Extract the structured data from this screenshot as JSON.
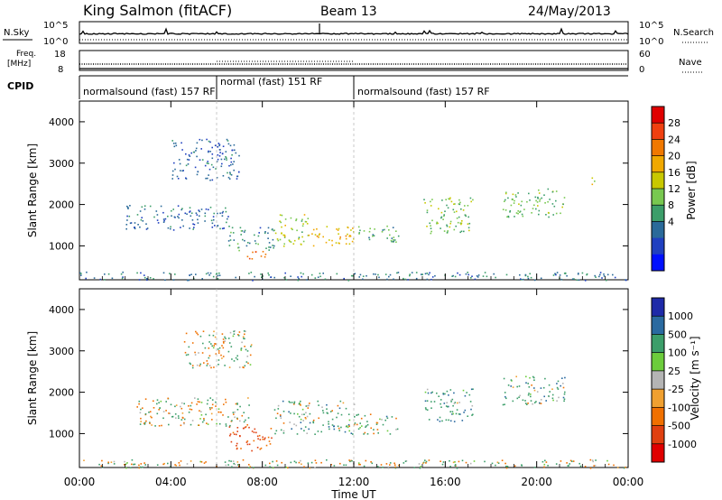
{
  "header": {
    "station": "King Salmon (fitACF)",
    "beam": "Beam 13",
    "date": "24/May/2013"
  },
  "params_panel": {
    "nsky_label": "N.Sky",
    "nsky_ticks": [
      "10^5",
      "10^0"
    ],
    "nsearch_label": "N.Search",
    "nsearch_ticks": [
      "10^5",
      "10^0"
    ],
    "freq_label_line1": "Freq.",
    "freq_label_line2": "[MHz]",
    "freq_ticks": [
      "18",
      "8"
    ],
    "nave_label": "Nave",
    "nave_ticks": [
      "60",
      "0"
    ],
    "cpid_label": "CPID"
  },
  "cpid_segments": [
    {
      "label": "normalsound (fast) 157 RF",
      "start_hour": 0,
      "end_hour": 6.0
    },
    {
      "label": "normal (fast) 151 RF",
      "start_hour": 6.0,
      "end_hour": 12.0
    },
    {
      "label": "normalsound (fast) 157 RF",
      "start_hour": 12.0,
      "end_hour": 24.0
    }
  ],
  "power_colorbar": {
    "label": "Power [dB]",
    "ticks": [
      "28",
      "24",
      "20",
      "16",
      "12",
      "8",
      "4"
    ],
    "colors": [
      "#e00000",
      "#f04010",
      "#f07800",
      "#f0a800",
      "#c8c800",
      "#78c850",
      "#3c9e6a",
      "#2a6a9a",
      "#2040c0",
      "#0010ff"
    ]
  },
  "velocity_colorbar": {
    "label": "Velocity [m s⁻¹]",
    "ticks": [
      "1000",
      "500",
      "100",
      "25",
      "-25",
      "-100",
      "-500",
      "-1000"
    ],
    "colors": [
      "#1e2aa8",
      "#2a6aa0",
      "#3c9e6a",
      "#6ccc3c",
      "#b4b4b4",
      "#f0a030",
      "#f07000",
      "#e04010",
      "#e00000"
    ]
  },
  "chart_data": {
    "type": "heatmap",
    "xlabel": "Time UT",
    "x_ticks": [
      "00:00",
      "04:00",
      "08:00",
      "12:00",
      "16:00",
      "20:00",
      "00:00"
    ],
    "xlim_hours": [
      0,
      24
    ],
    "ylabel": "Slant Range [km]",
    "y_ticks": [
      1000,
      2000,
      3000,
      4000
    ],
    "ylim": [
      180,
      4500
    ],
    "panels": [
      {
        "name": "power",
        "units": "dB",
        "regions": [
          {
            "t0": 0.0,
            "t1": 24.0,
            "r0": 180,
            "r1": 380,
            "value": 8
          },
          {
            "t0": 2.0,
            "t1": 6.5,
            "r0": 1400,
            "r1": 2000,
            "value": 7
          },
          {
            "t0": 4.0,
            "t1": 7.0,
            "r0": 2600,
            "r1": 3600,
            "value": 6
          },
          {
            "t0": 6.5,
            "t1": 8.5,
            "r0": 900,
            "r1": 1500,
            "value": 9
          },
          {
            "t0": 7.3,
            "t1": 8.3,
            "r0": 700,
            "r1": 950,
            "value": 28
          },
          {
            "t0": 8.5,
            "t1": 10.0,
            "r0": 1000,
            "r1": 1800,
            "value": 16
          },
          {
            "t0": 10.0,
            "t1": 12.0,
            "r0": 1000,
            "r1": 1500,
            "value": 20
          },
          {
            "t0": 12.0,
            "t1": 14.0,
            "r0": 1100,
            "r1": 1500,
            "value": 12
          },
          {
            "t0": 15.0,
            "t1": 17.2,
            "r0": 1300,
            "r1": 2200,
            "value": 14
          },
          {
            "t0": 18.5,
            "t1": 21.2,
            "r0": 1700,
            "r1": 2400,
            "value": 13
          },
          {
            "t0": 22.3,
            "t1": 22.5,
            "r0": 2500,
            "r1": 2900,
            "value": 18
          }
        ]
      },
      {
        "name": "velocity",
        "units": "m s-1",
        "regions": [
          {
            "t0": 0.0,
            "t1": 24.0,
            "r0": 180,
            "r1": 380,
            "value": 0
          },
          {
            "t0": 2.5,
            "t1": 7.5,
            "r0": 1200,
            "r1": 1900,
            "value": 0
          },
          {
            "t0": 4.5,
            "t1": 7.5,
            "r0": 2600,
            "r1": 3500,
            "value": 0
          },
          {
            "t0": 6.5,
            "t1": 8.5,
            "r0": 600,
            "r1": 1200,
            "value": -400
          },
          {
            "t0": 8.5,
            "t1": 12.0,
            "r0": 1000,
            "r1": 1800,
            "value": 120
          },
          {
            "t0": 12.0,
            "t1": 14.0,
            "r0": 1000,
            "r1": 1500,
            "value": 80
          },
          {
            "t0": 15.0,
            "t1": 17.2,
            "r0": 1300,
            "r1": 2100,
            "value": 200
          },
          {
            "t0": 18.5,
            "t1": 21.2,
            "r0": 1700,
            "r1": 2400,
            "value": 150
          }
        ]
      }
    ],
    "nsky_series": "black near 10^5 with spikes",
    "freq_series": "dotted ~10 MHz",
    "nave_series": "dotted ~30"
  }
}
